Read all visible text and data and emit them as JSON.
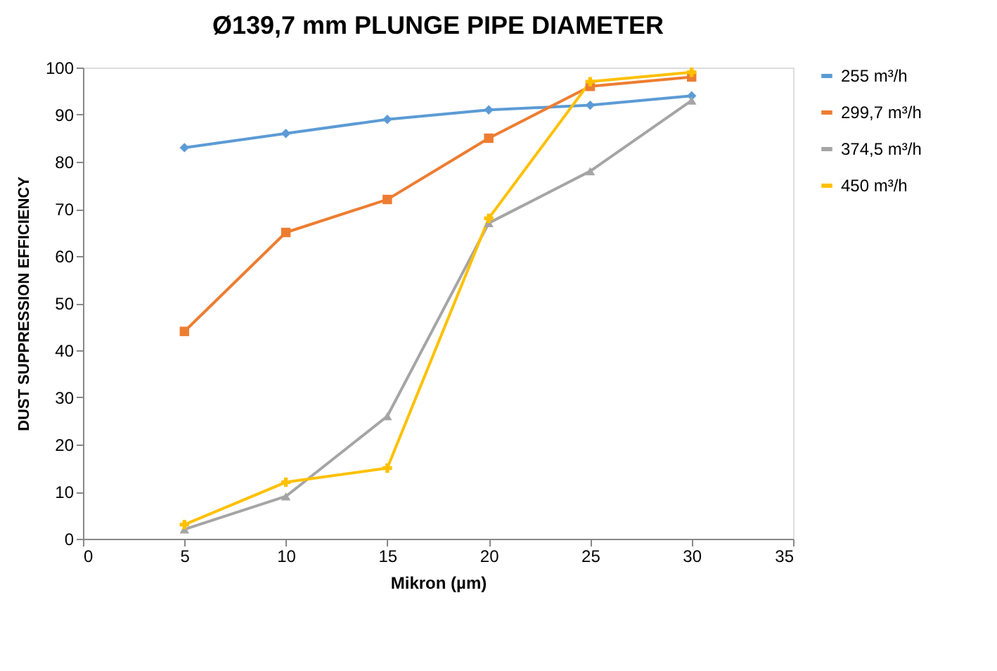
{
  "chart_data": {
    "type": "line",
    "title": "Ø139,7 mm PLUNGE PIPE DIAMETER",
    "xlabel": "Mikron (µm)",
    "ylabel": "DUST SUPPRESSION EFFICIENCY",
    "x": [
      5,
      10,
      15,
      20,
      25,
      30
    ],
    "xlim": [
      0,
      35
    ],
    "xticks": [
      0,
      5,
      10,
      15,
      20,
      25,
      30,
      35
    ],
    "ylim": [
      0,
      100
    ],
    "yticks": [
      0,
      10,
      20,
      30,
      40,
      50,
      60,
      70,
      80,
      90,
      100
    ],
    "grid": false,
    "legend": "right",
    "line_style": "solid",
    "series": [
      {
        "name": "255 m³/h",
        "color": "#5b9bd5",
        "marker": "diamond",
        "values": [
          83,
          86,
          89,
          91,
          92,
          94
        ]
      },
      {
        "name": "299,7 m³/h",
        "color": "#ed7d31",
        "marker": "square",
        "values": [
          44,
          65,
          72,
          85,
          96,
          98
        ]
      },
      {
        "name": "374,5 m³/h",
        "color": "#a5a5a5",
        "marker": "triangle",
        "values": [
          2,
          9,
          26,
          67,
          78,
          93
        ]
      },
      {
        "name": "450 m³/h",
        "color": "#ffc000",
        "marker": "cross",
        "values": [
          3,
          12,
          15,
          68,
          97,
          99
        ]
      }
    ]
  }
}
